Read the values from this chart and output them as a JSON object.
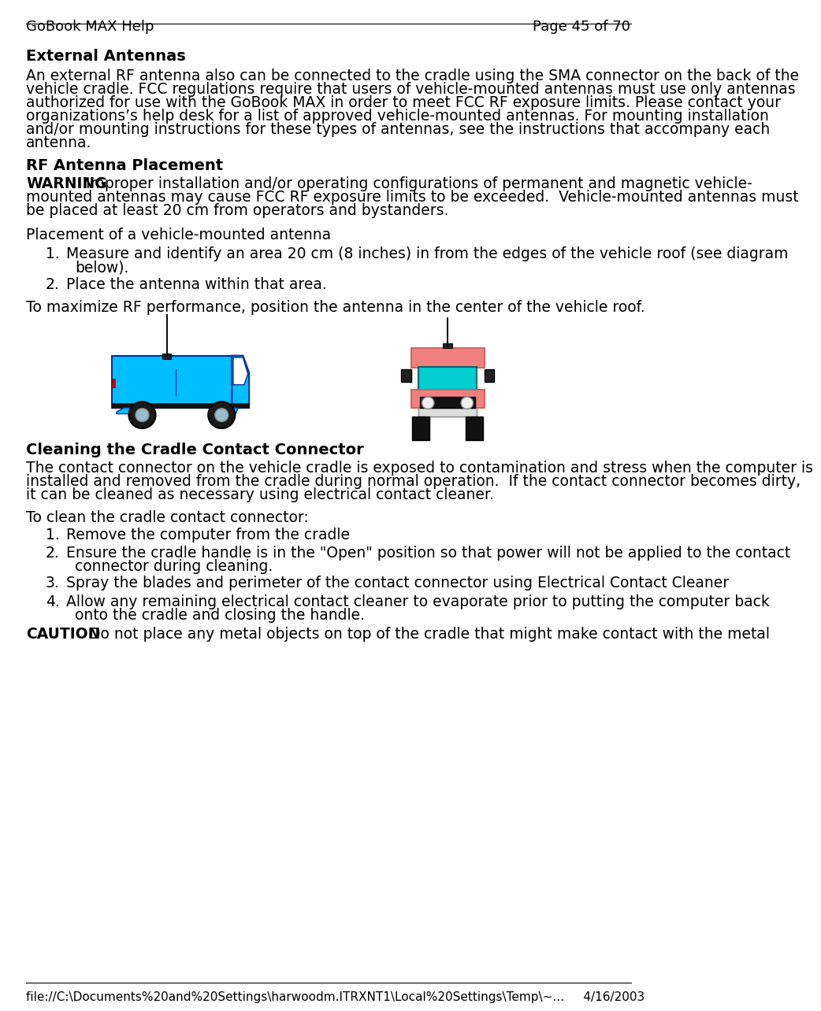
{
  "background_color": "#ffffff",
  "header_left": "GoBook MAX Help",
  "header_right": "Page 45 of 70",
  "footer_text": "file://C:\\Documents%20and%20Settings\\harwoodm.ITRXNT1\\Local%20Settings\\Temp\\~...     4/16/2003",
  "title_external": "External Antennas",
  "para1_lines": [
    "An external RF antenna also can be connected to the cradle using the SMA connector on the back of the",
    "vehicle cradle. FCC regulations require that users of vehicle-mounted antennas must use only antennas",
    "authorized for use with the GoBook MAX in order to meet FCC RF exposure limits. Please contact your",
    "organizations’s help desk for a list of approved vehicle-mounted antennas. For mounting installation",
    "and/or mounting instructions for these types of antennas, see the instructions that accompany each",
    "antenna."
  ],
  "title_rf": "RF Antenna Placement",
  "warning_label": "WARNING",
  "warning_lines": [
    "  Improper installation and/or operating configurations of permanent and magnetic vehicle-",
    "mounted antennas may cause FCC RF exposure limits to be exceeded.  Vehicle-mounted antennas must",
    "be placed at least 20 cm from operators and bystanders."
  ],
  "placement_header": "Placement of a vehicle-mounted antenna",
  "step1_line1": "Measure and identify an area 20 cm (8 inches) in from the edges of the vehicle roof (see diagram",
  "step1_line2": "below).",
  "step2": "Place the antenna within that area.",
  "maximize_text": "To maximize RF performance, position the antenna in the center of the vehicle roof.",
  "title_cleaning": "Cleaning the Cradle Contact Connector",
  "clean_para1_lines": [
    "The contact connector on the vehicle cradle is exposed to contamination and stress when the computer is",
    "installed and removed from the cradle during normal operation.  If the contact connector becomes dirty,",
    "it can be cleaned as necessary using electrical contact cleaner."
  ],
  "clean_para2": "To clean the cradle contact connector:",
  "clean_step1": "Remove the computer from the cradle",
  "clean_step2_line1": "Ensure the cradle handle is in the \"Open\" position so that power will not be applied to the contact",
  "clean_step2_line2": "connector during cleaning.",
  "clean_step3": "Spray the blades and perimeter of the contact connector using Electrical Contact Cleaner",
  "clean_step4_line1": "Allow any remaining electrical contact cleaner to evaporate prior to putting the computer back",
  "clean_step4_line2": "onto the cradle and closing the handle.",
  "caution_label": "CAUTION",
  "caution_text": "   Do not place any metal objects on top of the cradle that might make contact with the metal",
  "van_color": "#00BFFF",
  "van_roof_color": "#00BFFF",
  "van_cabin_color": "#ffffff",
  "van_wheel_color": "#1a1a1a",
  "van_hubcap_color": "#99cccc",
  "front_body_color": "#F08080",
  "front_window_color": "#00CED1",
  "front_wheel_color": "#111111"
}
